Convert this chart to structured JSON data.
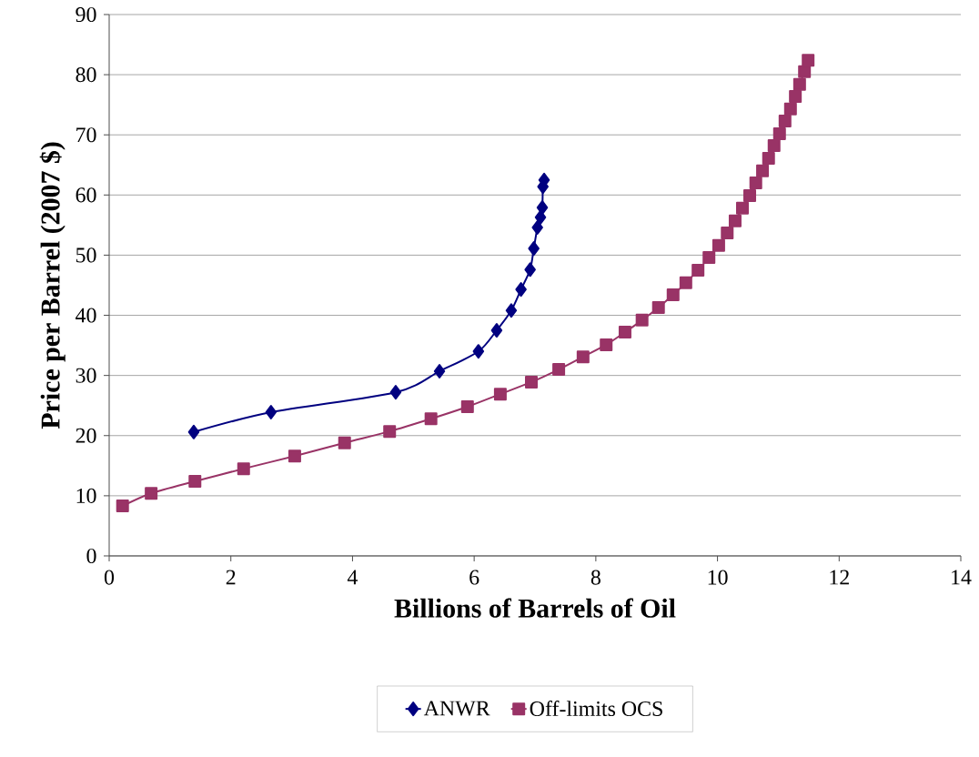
{
  "chart_data": {
    "type": "line",
    "xlabel": "Billions of Barrels of Oil",
    "ylabel": "Price per Barrel (2007 $)",
    "xlim": [
      0,
      14
    ],
    "xticks": [
      0,
      2,
      4,
      6,
      8,
      10,
      12,
      14
    ],
    "ylim": [
      0,
      90
    ],
    "yticks": [
      0,
      10,
      20,
      30,
      40,
      50,
      60,
      70,
      80,
      90
    ],
    "grid": "y",
    "legend": "bottom",
    "line_style": "solid",
    "series": [
      {
        "name": "ANWR",
        "color": "#000080",
        "marker": "diamond",
        "x": [
          1.39,
          2.66,
          4.71,
          5.43,
          6.07,
          6.37,
          6.61,
          6.77,
          6.92,
          6.98,
          7.04,
          7.09,
          7.12,
          7.13,
          7.15
        ],
        "values": [
          20.6,
          23.9,
          27.2,
          30.7,
          34.0,
          37.5,
          40.8,
          44.3,
          47.6,
          51.1,
          54.6,
          56.3,
          57.9,
          61.4,
          62.5
        ]
      },
      {
        "name": "Off-limits OCS",
        "color": "#993366",
        "marker": "square",
        "x": [
          0.22,
          0.69,
          1.41,
          2.21,
          3.05,
          3.87,
          4.61,
          5.29,
          5.89,
          6.43,
          6.94,
          7.39,
          7.79,
          8.17,
          8.48,
          8.76,
          9.03,
          9.27,
          9.48,
          9.68,
          9.86,
          10.02,
          10.16,
          10.29,
          10.41,
          10.53,
          10.63,
          10.74,
          10.84,
          10.93,
          11.02,
          11.11,
          11.2,
          11.28,
          11.35,
          11.43,
          11.49
        ],
        "values": [
          8.3,
          10.4,
          12.4,
          14.5,
          16.6,
          18.8,
          20.7,
          22.8,
          24.8,
          26.9,
          28.9,
          31.0,
          33.1,
          35.1,
          37.2,
          39.2,
          41.3,
          43.4,
          45.4,
          47.5,
          49.6,
          51.6,
          53.7,
          55.7,
          57.8,
          59.9,
          62.0,
          64.0,
          66.1,
          68.2,
          70.2,
          72.3,
          74.3,
          76.4,
          78.4,
          80.5,
          82.4
        ]
      }
    ]
  }
}
